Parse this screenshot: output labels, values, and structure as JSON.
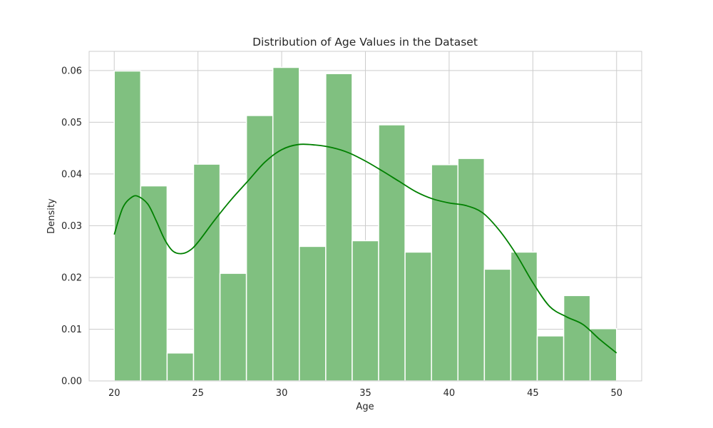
{
  "chart_data": {
    "type": "bar",
    "title": "Distribution of Age Values in the Dataset",
    "xlabel": "Age",
    "ylabel": "Density",
    "xlim": [
      18.5,
      51.5
    ],
    "ylim": [
      0,
      0.0637
    ],
    "grid": true,
    "colors": {
      "bar_fill": "#80c080",
      "bar_edge": "#ffffff",
      "kde": "#008000",
      "grid": "#cccccc",
      "frame": "#cccccc"
    },
    "x_ticks": [
      20,
      25,
      30,
      35,
      40,
      45,
      50
    ],
    "x_tick_labels": [
      "20",
      "25",
      "30",
      "35",
      "40",
      "45",
      "50"
    ],
    "y_ticks": [
      0.0,
      0.01,
      0.02,
      0.03,
      0.04,
      0.05,
      0.06
    ],
    "y_tick_labels": [
      "0.00",
      "0.01",
      "0.02",
      "0.03",
      "0.04",
      "0.05",
      "0.06"
    ],
    "bins": {
      "start": 20,
      "width": 1.5789,
      "values": [
        0.0599,
        0.0377,
        0.0054,
        0.0419,
        0.0208,
        0.0513,
        0.0606,
        0.026,
        0.0594,
        0.0271,
        0.0495,
        0.0249,
        0.0418,
        0.043,
        0.0216,
        0.0249,
        0.0087,
        0.0165,
        0.0101
      ]
    },
    "kde": {
      "x": [
        20,
        20.5,
        21,
        21.4,
        22,
        22.5,
        23,
        23.5,
        24,
        24.5,
        25,
        26,
        27,
        28,
        29,
        30,
        31,
        32,
        33,
        34,
        35,
        36,
        37,
        38,
        39,
        40,
        41,
        42,
        43,
        44,
        45,
        46,
        47,
        48,
        49,
        50
      ],
      "y": [
        0.0283,
        0.0334,
        0.0354,
        0.0357,
        0.0342,
        0.031,
        0.0274,
        0.0251,
        0.0246,
        0.0252,
        0.0268,
        0.0311,
        0.0351,
        0.0387,
        0.0423,
        0.0447,
        0.0457,
        0.0456,
        0.0451,
        0.0441,
        0.0425,
        0.0406,
        0.0386,
        0.0366,
        0.0352,
        0.0344,
        0.0339,
        0.0325,
        0.0291,
        0.0245,
        0.019,
        0.0144,
        0.0124,
        0.0109,
        0.008,
        0.0054
      ]
    }
  }
}
